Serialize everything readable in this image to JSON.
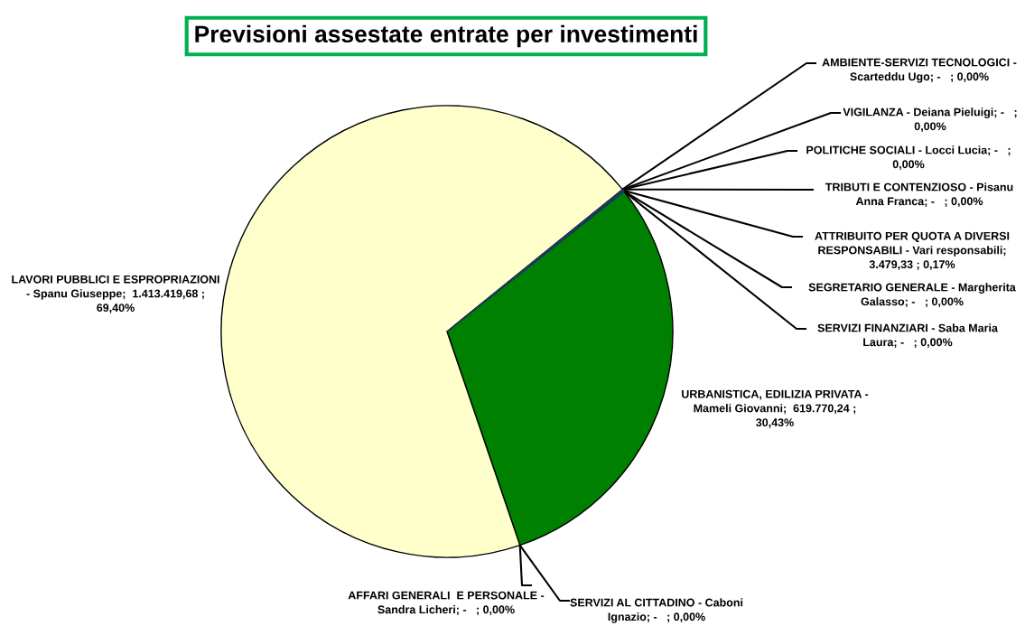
{
  "chart_data": {
    "type": "pie",
    "title": "Previsioni assestate entrate per investimenti",
    "categories": [
      "AMBIENTE-SERVIZI TECNOLOGICI -\nScarteddu Ugo; -   ; 0,00%",
      "VIGILANZA - Deiana Pieluigi; -   ;\n0,00%",
      "POLITICHE SOCIALI - Locci Lucia; -   ;\n0,00%",
      "TRIBUTI E CONTENZIOSO - Pisanu\nAnna Franca; -   ; 0,00%",
      "ATTRIBUITO PER QUOTA A DIVERSI\nRESPONSABILI - Vari responsabili;\n3.479,33 ; 0,17%",
      "SEGRETARIO GENERALE - Margherita\nGalasso; -   ; 0,00%",
      "SERVIZI FINANZIARI - Saba Maria\nLaura; -   ; 0,00%",
      "URBANISTICA, EDILIZIA PRIVATA -\nMameli Giovanni;  619.770,24 ;\n30,43%",
      "SERVIZI AL CITTADINO - Caboni\nIgnazio; -   ; 0,00%",
      "AFFARI GENERALI  E PERSONALE -\nSandra Licheri; -   ; 0,00%",
      "LAVORI PUBBLICI E ESPROPRIAZIONI\n- Spanu Giuseppe;  1.413.419,68 ;\n69,40%"
    ],
    "values": [
      0,
      0,
      0,
      0,
      3479.33,
      0,
      0,
      619770.24,
      0,
      0,
      1413419.68
    ],
    "colors": [
      "#4f81bd",
      "#c0504d",
      "#9bbb59",
      "#8064a2",
      "#1f3864",
      "#f79646",
      "#2c4d75",
      "#008000",
      "#772c2a",
      "#5f7530",
      "#ffffcc"
    ]
  }
}
